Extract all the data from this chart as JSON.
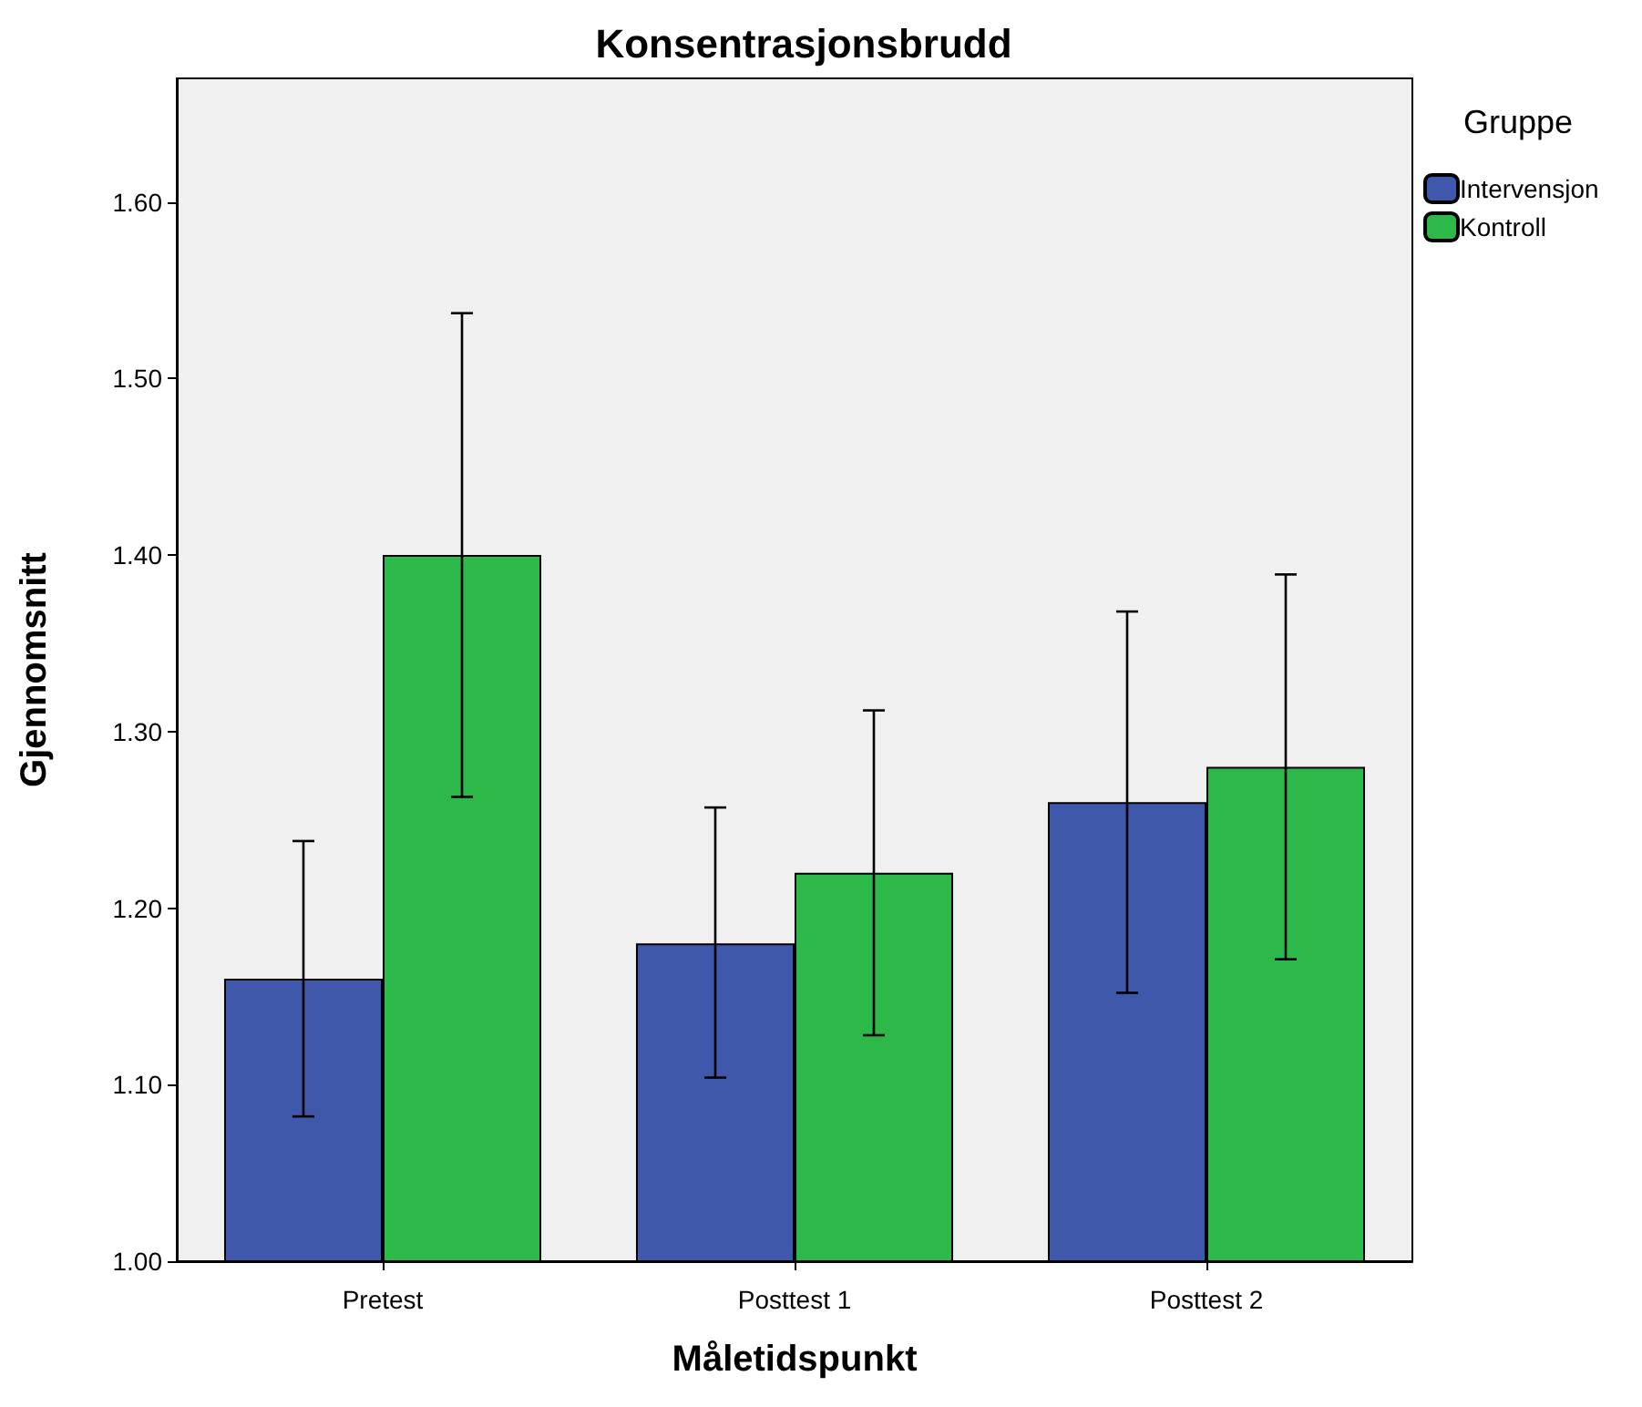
{
  "chart_data": {
    "type": "bar",
    "title": "Konsentrasjonsbrudd",
    "xlabel": "Måletidspunkt",
    "ylabel": "Gjennomsnitt",
    "legend_title": "Gruppe",
    "legend": "top right",
    "grid": false,
    "categories": [
      "Pretest",
      "Posttest 1",
      "Posttest 2"
    ],
    "series": [
      {
        "name": "Intervensjon",
        "color": "#3f58ab",
        "values": [
          1.16,
          1.18,
          1.26
        ],
        "errors": [
          [
            1.082,
            1.238
          ],
          [
            1.104,
            1.257
          ],
          [
            1.152,
            1.368
          ]
        ]
      },
      {
        "name": "Kontroll",
        "color": "#2db84a",
        "values": [
          1.4,
          1.22,
          1.28
        ],
        "errors": [
          [
            1.263,
            1.537
          ],
          [
            1.128,
            1.312
          ],
          [
            1.171,
            1.389
          ]
        ]
      }
    ],
    "ylim": [
      1.0,
      1.67
    ],
    "yticks": [
      {
        "value": 1.0,
        "label": "1.00"
      },
      {
        "value": 1.1,
        "label": "1.10"
      },
      {
        "value": 1.2,
        "label": "1.20"
      },
      {
        "value": 1.3,
        "label": "1.30"
      },
      {
        "value": 1.4,
        "label": "1.40"
      },
      {
        "value": 1.5,
        "label": "1.50"
      },
      {
        "value": 1.6,
        "label": "1.60"
      }
    ]
  }
}
